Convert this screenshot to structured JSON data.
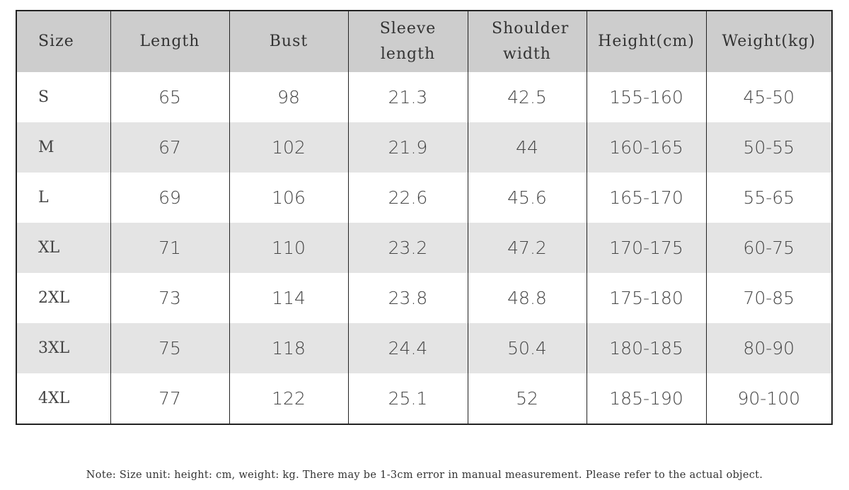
{
  "table": {
    "header": [
      "Size",
      "Length",
      "Bust",
      "Sleeve length",
      "Shoulder width",
      "Height(cm)",
      "Weight(kg)"
    ],
    "rows": [
      [
        "S",
        "65",
        "98",
        "21.3",
        "42.5",
        "155-160",
        "45-50"
      ],
      [
        "M",
        "67",
        "102",
        "21.9",
        "44",
        "160-165",
        "50-55"
      ],
      [
        "L",
        "69",
        "106",
        "22.6",
        "45.6",
        "165-170",
        "55-65"
      ],
      [
        "XL",
        "71",
        "110",
        "23.2",
        "47.2",
        "170-175",
        "60-75"
      ],
      [
        "2XL",
        "73",
        "114",
        "23.8",
        "48.8",
        "175-180",
        "70-85"
      ],
      [
        "3XL",
        "75",
        "118",
        "24.4",
        "50.4",
        "180-185",
        "80-90"
      ],
      [
        "4XL",
        "77",
        "122",
        "25.1",
        "52",
        "185-190",
        "90-100"
      ]
    ]
  },
  "note": "Note: Size unit: height: cm, weight: kg. There may be 1-3cm error in manual measurement. Please refer to the actual object."
}
